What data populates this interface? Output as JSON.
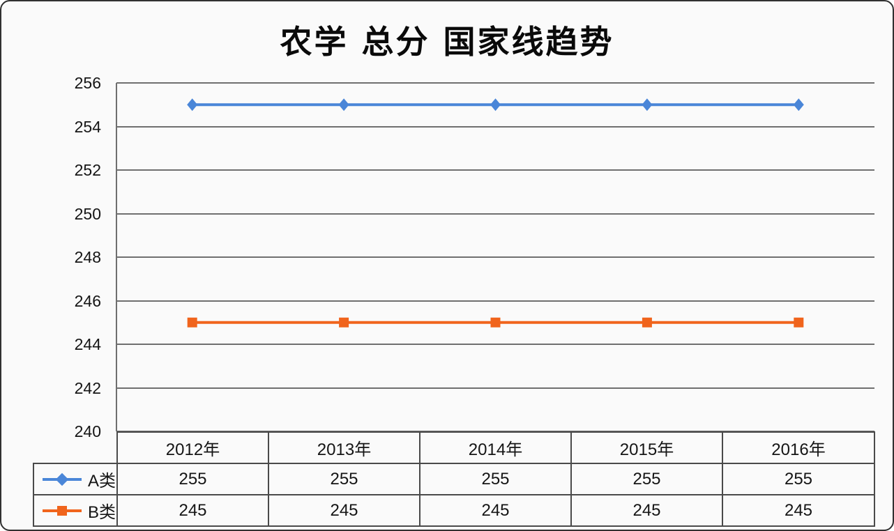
{
  "chart_data": {
    "type": "line",
    "title": "农学 总分 国家线趋势",
    "categories": [
      "2012年",
      "2013年",
      "2014年",
      "2015年",
      "2016年"
    ],
    "series": [
      {
        "name": "A类",
        "values": [
          255,
          255,
          255,
          255,
          255
        ],
        "color": "#4a86d8",
        "marker": "diamond"
      },
      {
        "name": "B类",
        "values": [
          245,
          245,
          245,
          245,
          245
        ],
        "color": "#f0641c",
        "marker": "square"
      }
    ],
    "ylim": [
      240,
      256
    ],
    "ytick_step": 2,
    "yticks": [
      256,
      254,
      252,
      250,
      248,
      246,
      244,
      242,
      240
    ],
    "grid": "horizontal-only",
    "legend_position": "table-left-column",
    "xlabel": "",
    "ylabel": ""
  },
  "colors": {
    "series_a": "#4a86d8",
    "series_b": "#f0641c",
    "gridline": "#6f6f6f",
    "table_border": "#4a4a4a",
    "text": "#151515",
    "background": "#fafafa",
    "card_border": "#303030"
  }
}
